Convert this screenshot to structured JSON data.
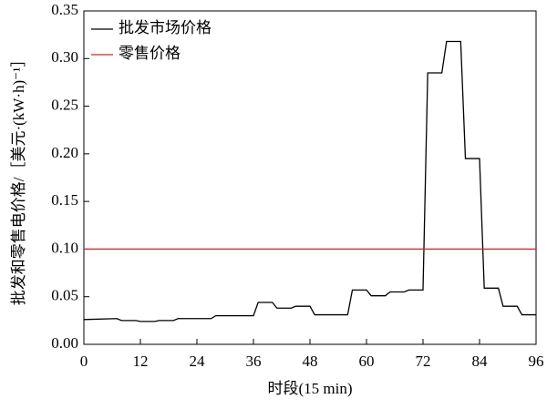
{
  "chart_data": {
    "type": "line",
    "xlabel": "时段(15 min)",
    "ylabel": "批发和零售电价格/［美元·(kW·h)⁻¹］",
    "series": [
      {
        "name": "批发市场价格",
        "color": "#000000",
        "x": [
          0,
          7,
          8,
          11,
          12,
          15,
          16,
          19,
          20,
          27,
          28,
          35,
          36,
          37,
          40,
          41,
          44,
          45,
          48,
          49,
          56,
          57,
          60,
          61,
          64,
          65,
          68,
          69,
          72,
          73,
          76,
          77,
          80,
          81,
          84,
          85,
          88,
          89,
          92,
          93,
          96
        ],
        "values": [
          0.026,
          0.027,
          0.025,
          0.025,
          0.024,
          0.024,
          0.025,
          0.025,
          0.027,
          0.027,
          0.03,
          0.03,
          0.03,
          0.044,
          0.044,
          0.038,
          0.038,
          0.04,
          0.04,
          0.031,
          0.031,
          0.057,
          0.057,
          0.051,
          0.051,
          0.055,
          0.055,
          0.057,
          0.057,
          0.285,
          0.285,
          0.318,
          0.318,
          0.195,
          0.195,
          0.059,
          0.059,
          0.04,
          0.04,
          0.031,
          0.031
        ]
      },
      {
        "name": "零售价格",
        "color": "#d62728",
        "x": [
          0,
          96
        ],
        "values": [
          0.1,
          0.1
        ]
      }
    ],
    "xlim": [
      0,
      96
    ],
    "xticks": [
      0,
      12,
      24,
      36,
      48,
      60,
      72,
      84,
      96
    ],
    "ylim": [
      0,
      0.35
    ],
    "yticks": [
      {
        "value": 0,
        "label": "0.00"
      },
      {
        "value": 0.05,
        "label": "0.05"
      },
      {
        "value": 0.1,
        "label": "0.10"
      },
      {
        "value": 0.15,
        "label": "0.15"
      },
      {
        "value": 0.2,
        "label": "0.20"
      },
      {
        "value": 0.25,
        "label": "0.25"
      },
      {
        "value": 0.3,
        "label": "0.30"
      },
      {
        "value": 0.35,
        "label": "0.35"
      }
    ],
    "legend": "upper left",
    "grid": false
  }
}
